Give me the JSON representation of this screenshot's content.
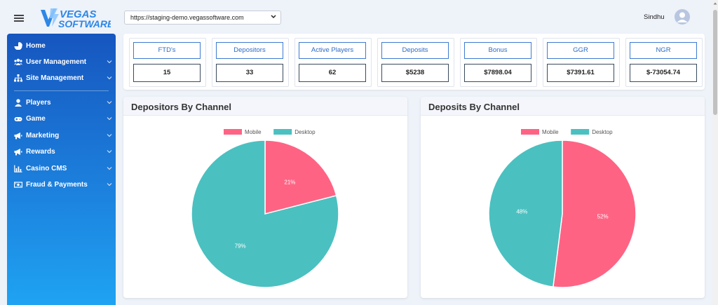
{
  "header": {
    "logo_text": [
      "VEGAS",
      "SOFTWARE"
    ],
    "site_url": "https://staging-demo.vegassoftware.com",
    "username": "Sindhu"
  },
  "sidebar": {
    "items": [
      {
        "label": "Home",
        "icon": "home-icon",
        "expandable": false
      },
      {
        "label": "User Management",
        "icon": "users-icon",
        "expandable": true
      },
      {
        "label": "Site Management",
        "icon": "sitemap-icon",
        "expandable": true
      },
      {
        "label": "Players",
        "icon": "user-icon",
        "expandable": true
      },
      {
        "label": "Game",
        "icon": "gamepad-icon",
        "expandable": true
      },
      {
        "label": "Marketing",
        "icon": "megaphone-icon",
        "expandable": true
      },
      {
        "label": "Rewards",
        "icon": "megaphone-icon",
        "expandable": true
      },
      {
        "label": "Casino CMS",
        "icon": "chart-icon",
        "expandable": true
      },
      {
        "label": "Fraud & Payments",
        "icon": "money-icon",
        "expandable": true
      }
    ]
  },
  "kpis": [
    {
      "label": "FTD's",
      "value": "15"
    },
    {
      "label": "Depositors",
      "value": "33"
    },
    {
      "label": "Active Players",
      "value": "62"
    },
    {
      "label": "Deposits",
      "value": "$5238"
    },
    {
      "label": "Bonus",
      "value": "$7898.04"
    },
    {
      "label": "GGR",
      "value": "$7391.61"
    },
    {
      "label": "NGR",
      "value": "$-73054.74"
    }
  ],
  "colors": {
    "mobile": "#ff6384",
    "desktop": "#4bc0c0",
    "accent": "#2c6cc7"
  },
  "chart_data": [
    {
      "type": "pie",
      "title": "Depositors By Channel",
      "categories": [
        "Mobile",
        "Desktop"
      ],
      "values": [
        21,
        79
      ],
      "labels": [
        "21%",
        "79%"
      ],
      "legend": "top"
    },
    {
      "type": "pie",
      "title": "Deposits By Channel",
      "categories": [
        "Mobile",
        "Desktop"
      ],
      "values": [
        52,
        48
      ],
      "labels": [
        "52%",
        "48%"
      ],
      "legend": "top"
    }
  ]
}
